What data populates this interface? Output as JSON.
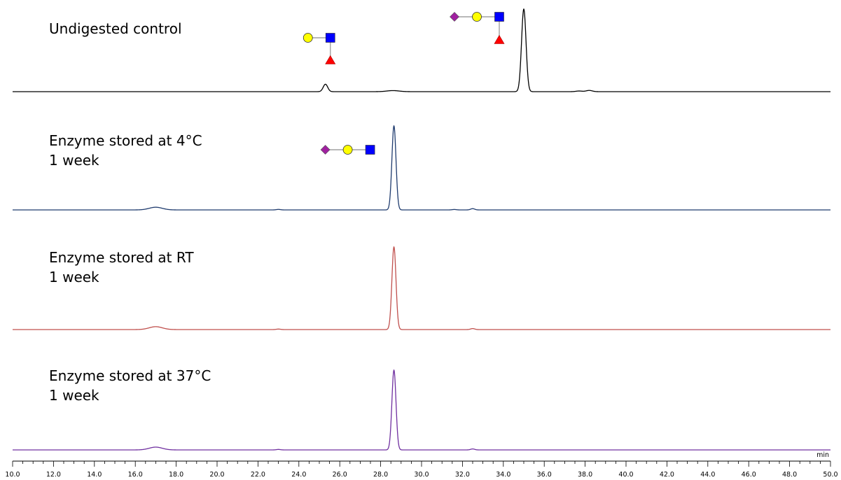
{
  "chart_data": {
    "type": "line",
    "xlabel": "min",
    "xlim": [
      10.0,
      50.0
    ],
    "x_ticks": [
      "10.0",
      "12.0",
      "14.0",
      "16.0",
      "18.0",
      "20.0",
      "22.0",
      "24.0",
      "26.0",
      "28.0",
      "30.0",
      "32.0",
      "34.0",
      "36.0",
      "38.0",
      "40.0",
      "42.0",
      "44.0",
      "46.0",
      "48.0",
      "50.0"
    ],
    "minor_tick_step": 0.5,
    "grid": false,
    "legend": "none",
    "series": [
      {
        "name": "Undigested control",
        "label_lines": [
          "Undigested control"
        ],
        "color": "#000000",
        "peaks": [
          {
            "x": 25.3,
            "height": 0.09,
            "width": 0.11
          },
          {
            "x": 28.6,
            "height": 0.013,
            "width": 0.3
          },
          {
            "x": 35.0,
            "height": 1.0,
            "width": 0.11
          },
          {
            "x": 37.7,
            "height": 0.008,
            "width": 0.15
          },
          {
            "x": 38.2,
            "height": 0.015,
            "width": 0.15
          }
        ],
        "glycans": [
          {
            "anchor_x": 25.3,
            "structure": "galactose-glcnac-fucose",
            "symbols": [
              "galactose",
              "glcnac",
              "fucose"
            ]
          },
          {
            "anchor_x": 35.0,
            "structure": "sialic-galactose-glcnac-fucose",
            "symbols": [
              "sialic-acid",
              "galactose",
              "glcnac",
              "fucose"
            ]
          }
        ]
      },
      {
        "name": "Enzyme stored at 4°C 1 week",
        "label_lines": [
          "Enzyme stored at 4°C",
          "1 week"
        ],
        "color": "#1f3b6e",
        "peaks": [
          {
            "x": 17.0,
            "height": 0.032,
            "width": 0.32
          },
          {
            "x": 23.0,
            "height": 0.006,
            "width": 0.1
          },
          {
            "x": 28.65,
            "height": 1.0,
            "width": 0.1
          },
          {
            "x": 31.6,
            "height": 0.005,
            "width": 0.1
          },
          {
            "x": 32.5,
            "height": 0.015,
            "width": 0.1
          }
        ],
        "glycans": [
          {
            "anchor_x": 28.65,
            "structure": "sialic-galactose-glcnac",
            "symbols": [
              "sialic-acid",
              "galactose",
              "glcnac"
            ]
          }
        ]
      },
      {
        "name": "Enzyme stored at RT 1 week",
        "label_lines": [
          "Enzyme stored at RT",
          "1 week"
        ],
        "color": "#c0504d",
        "peaks": [
          {
            "x": 17.0,
            "height": 0.035,
            "width": 0.32
          },
          {
            "x": 23.0,
            "height": 0.006,
            "width": 0.1
          },
          {
            "x": 28.65,
            "height": 1.0,
            "width": 0.1
          },
          {
            "x": 32.5,
            "height": 0.012,
            "width": 0.1
          }
        ],
        "glycans": []
      },
      {
        "name": "Enzyme stored at 37°C 1 week",
        "label_lines": [
          "Enzyme stored at 37°C",
          "1 week"
        ],
        "color": "#7030a0",
        "peaks": [
          {
            "x": 17.0,
            "height": 0.035,
            "width": 0.32
          },
          {
            "x": 23.0,
            "height": 0.006,
            "width": 0.1
          },
          {
            "x": 28.65,
            "height": 1.0,
            "width": 0.1
          },
          {
            "x": 32.5,
            "height": 0.012,
            "width": 0.1
          }
        ],
        "glycans": []
      }
    ],
    "glycan_symbol_colors": {
      "galactose": "#ffff00",
      "glcnac": "#0000ff",
      "fucose": "#ff0000",
      "sialic-acid": "#a020a0",
      "linkage": "#a0a0a0"
    }
  }
}
